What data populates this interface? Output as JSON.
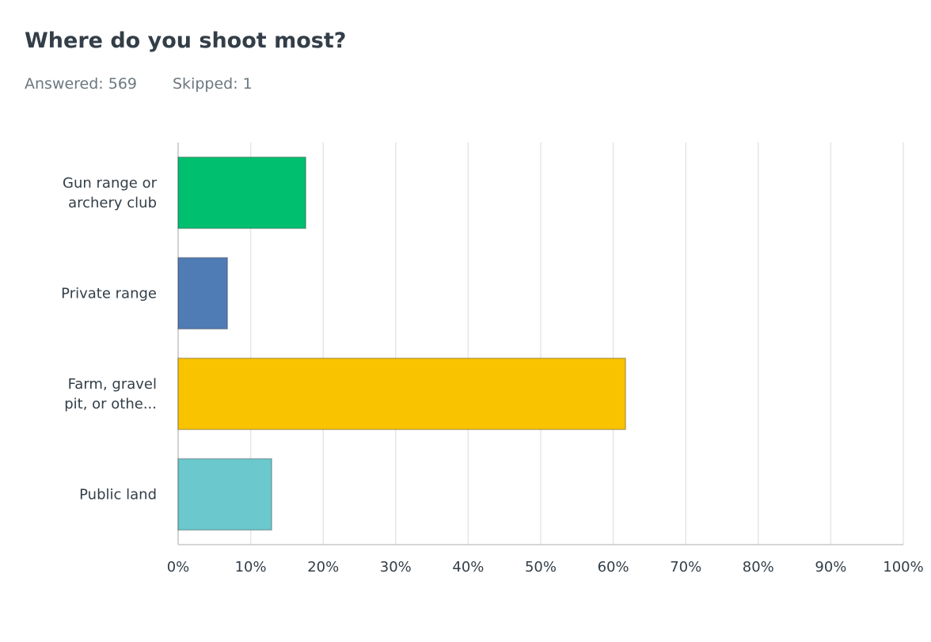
{
  "chart_data": {
    "type": "hbar",
    "title": "Where do you shoot most?",
    "answered": "Answered: 569",
    "skipped": "Skipped: 1",
    "categories": [
      "Gun range or archery club",
      "Private range",
      "Farm, gravel pit, or othe...",
      "Public land"
    ],
    "values": [
      17.6,
      6.8,
      61.7,
      12.9
    ],
    "colors": [
      "#00bf6f",
      "#507cb6",
      "#f9c300",
      "#6bc8cd"
    ],
    "xlim": [
      0,
      100
    ],
    "xticks": [
      {
        "value": 0,
        "label": "0%"
      },
      {
        "value": 10,
        "label": "10%"
      },
      {
        "value": 20,
        "label": "20%"
      },
      {
        "value": 30,
        "label": "30%"
      },
      {
        "value": 40,
        "label": "40%"
      },
      {
        "value": 50,
        "label": "50%"
      },
      {
        "value": 60,
        "label": "60%"
      },
      {
        "value": 70,
        "label": "70%"
      },
      {
        "value": 80,
        "label": "80%"
      },
      {
        "value": 90,
        "label": "90%"
      },
      {
        "value": 100,
        "label": "100%"
      }
    ],
    "grid": true
  }
}
